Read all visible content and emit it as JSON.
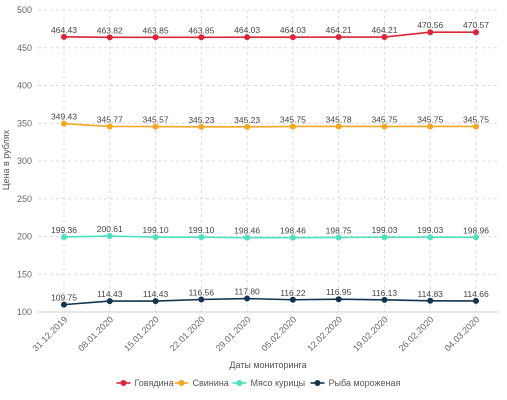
{
  "chart_data": {
    "type": "line",
    "title": "",
    "xlabel": "Даты мониторинга",
    "ylabel": "Цена в рублях",
    "ylim": [
      100,
      500
    ],
    "yticks": [
      100,
      150,
      200,
      250,
      300,
      350,
      400,
      450,
      500
    ],
    "grid": true,
    "legend_position": "bottom",
    "categories": [
      "31.12.2019",
      "08.01.2020",
      "15.01.2020",
      "22.01.2020",
      "29.01.2020",
      "05.02.2020",
      "12.02.2020",
      "19.02.2020",
      "26.02.2020",
      "04.03.2020"
    ],
    "series": [
      {
        "name": "Говядина",
        "color": "#d9263b",
        "values": [
          464.43,
          463.82,
          463.85,
          463.85,
          464.03,
          464.03,
          464.21,
          464.21,
          470.56,
          470.57
        ],
        "labels": [
          "464.43",
          "463.82",
          "463.85",
          "463.85",
          "464.03",
          "464.03",
          "464.21",
          "464.21",
          "470.56",
          "470.57"
        ]
      },
      {
        "name": "Свинина",
        "color": "#f5a623",
        "values": [
          349.43,
          345.77,
          345.57,
          345.23,
          345.23,
          345.75,
          345.78,
          345.75,
          345.75,
          345.75
        ],
        "labels": [
          "349.43",
          "345.77",
          "345.57",
          "345.23",
          "345.23",
          "345.75",
          "345.78",
          "345.75",
          "345.75",
          "345.75"
        ]
      },
      {
        "name": "Мясо курицы",
        "color": "#4fe0c0",
        "values": [
          199.36,
          200.61,
          199.1,
          199.1,
          198.46,
          198.46,
          198.75,
          199.03,
          199.03,
          198.96
        ],
        "labels": [
          "199.36",
          "200.61",
          "199.10",
          "199.10",
          "198.46",
          "198.46",
          "198.75",
          "199.03",
          "199.03",
          "198.96"
        ]
      },
      {
        "name": "Рыба мороженая",
        "color": "#13334f",
        "values": [
          109.75,
          114.43,
          114.43,
          116.56,
          117.8,
          116.22,
          116.95,
          116.13,
          114.83,
          114.66
        ],
        "labels": [
          "109.75",
          "114.43",
          "114.43",
          "116.56",
          "117.80",
          "116.22",
          "116.95",
          "116.13",
          "114.83",
          "114.66"
        ]
      }
    ]
  }
}
